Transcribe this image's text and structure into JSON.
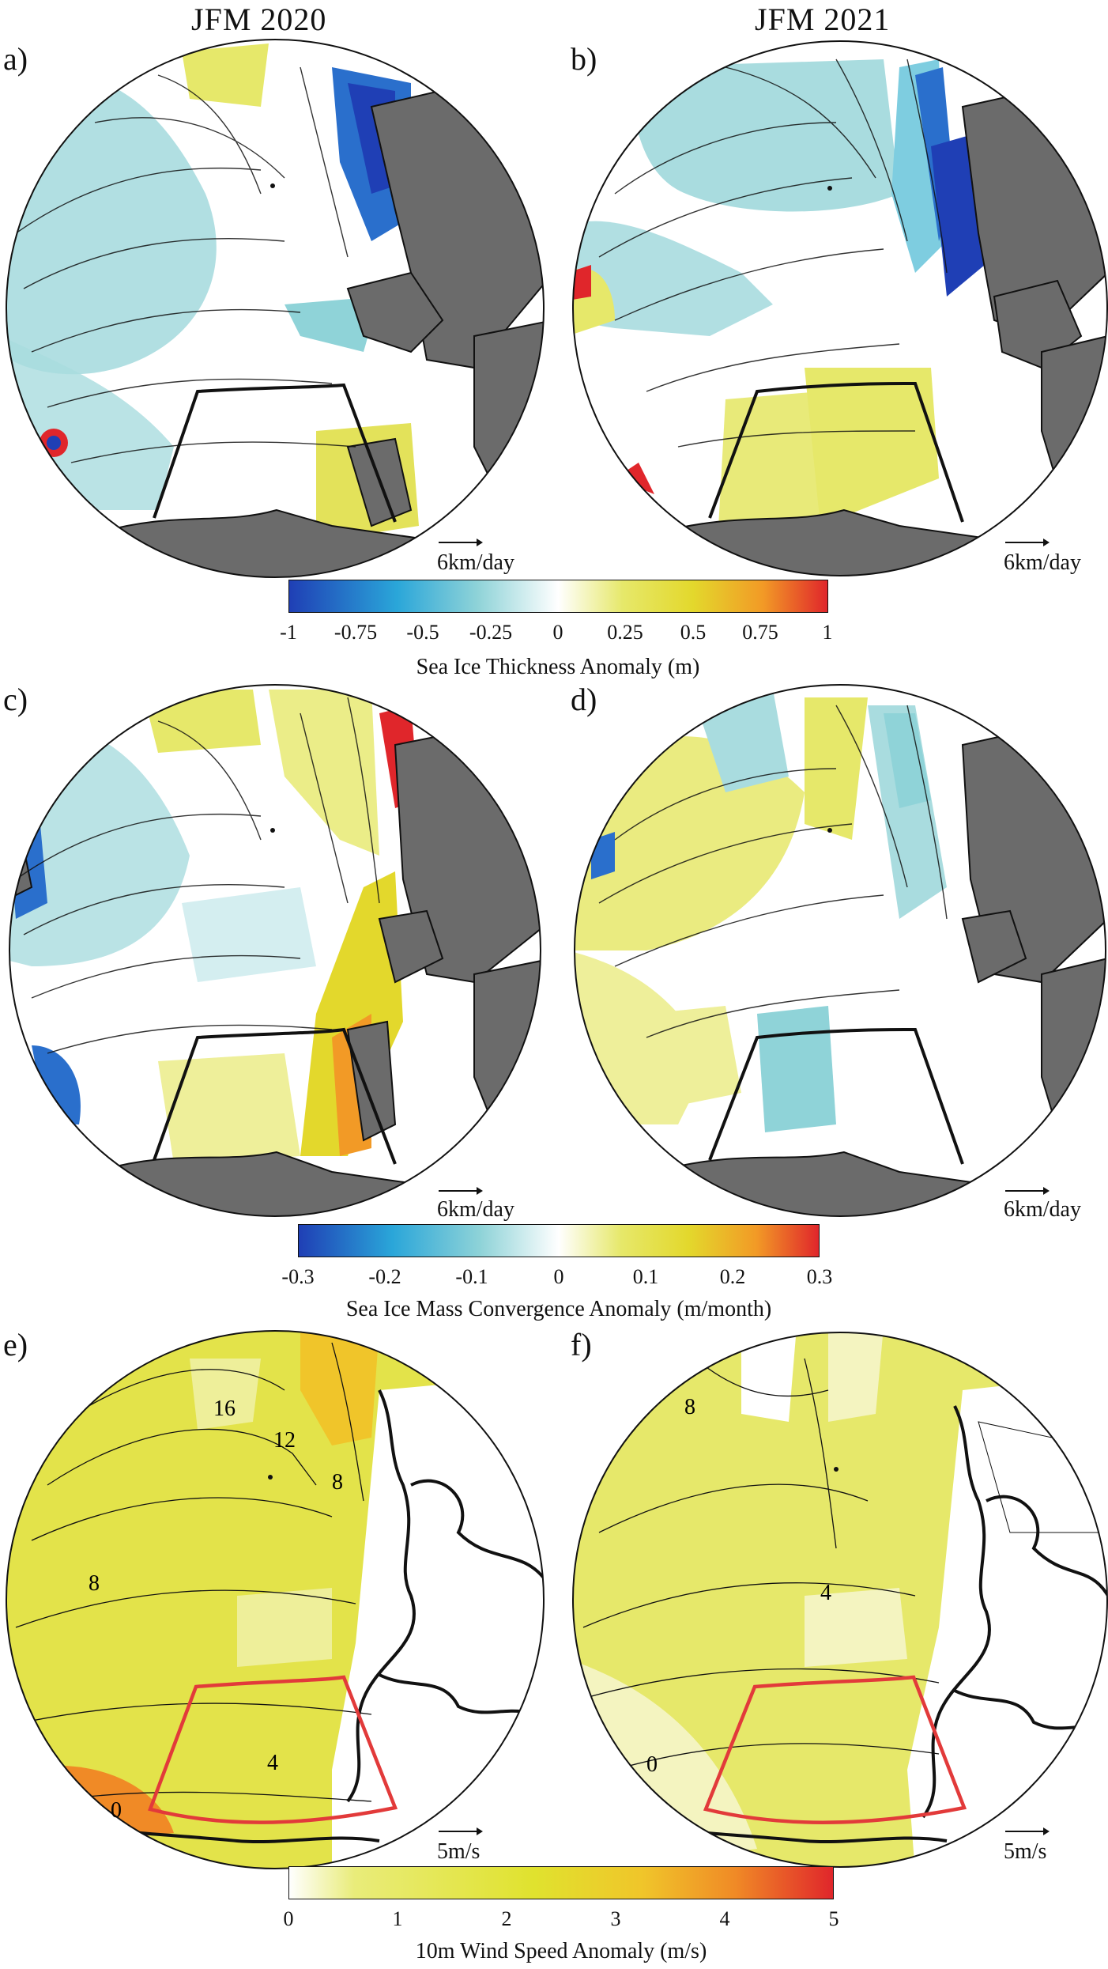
{
  "columns": {
    "left_title": "JFM 2020",
    "right_title": "JFM 2021"
  },
  "panels": [
    {
      "id": "a",
      "label": "a)",
      "scale_label": "6km/day"
    },
    {
      "id": "b",
      "label": "b)",
      "scale_label": "6km/day"
    },
    {
      "id": "c",
      "label": "c)",
      "scale_label": "6km/day"
    },
    {
      "id": "d",
      "label": "d)",
      "scale_label": "6km/day"
    },
    {
      "id": "e",
      "label": "e)",
      "scale_label": "5m/s",
      "contours": [
        "16",
        "12",
        "8",
        "8",
        "4",
        "0"
      ]
    },
    {
      "id": "f",
      "label": "f)",
      "scale_label": "5m/s",
      "contours": [
        "8",
        "4",
        "0"
      ]
    }
  ],
  "colorbars": [
    {
      "title": "Sea Ice Thickness Anomaly (m)",
      "ticks": [
        "-1",
        "-0.75",
        "-0.5",
        "-0.25",
        "0",
        "0.25",
        "0.5",
        "0.75",
        "1"
      ],
      "colors": [
        "#1f3fb5",
        "#2aa6d9",
        "#8fd3d8",
        "#ffffff",
        "#e6e86a",
        "#e3d82c",
        "#f29a26",
        "#e0262b"
      ]
    },
    {
      "title": "Sea Ice Mass Convergence Anomaly (m/month)",
      "ticks": [
        "-0.3",
        "-0.2",
        "-0.1",
        "0",
        "0.1",
        "0.2",
        "0.3"
      ],
      "colors": [
        "#1f3fb5",
        "#2aa6d9",
        "#8fd3d8",
        "#ffffff",
        "#e6e86a",
        "#e3d82c",
        "#f29a26",
        "#e0262b"
      ]
    },
    {
      "title": "10m Wind Speed Anomaly (m/s)",
      "ticks": [
        "0",
        "1",
        "2",
        "3",
        "4",
        "5"
      ],
      "colors": [
        "#ffffff",
        "#e9ec7a",
        "#e0e22e",
        "#f0c52a",
        "#f08a26",
        "#e0262b"
      ]
    }
  ],
  "colors": {
    "land": "#6b6b6b",
    "box_ice": "#111111",
    "box_wind": "#e23a3a",
    "thin_cyan": "#9ed8db",
    "yellow": "#e6e86a"
  }
}
